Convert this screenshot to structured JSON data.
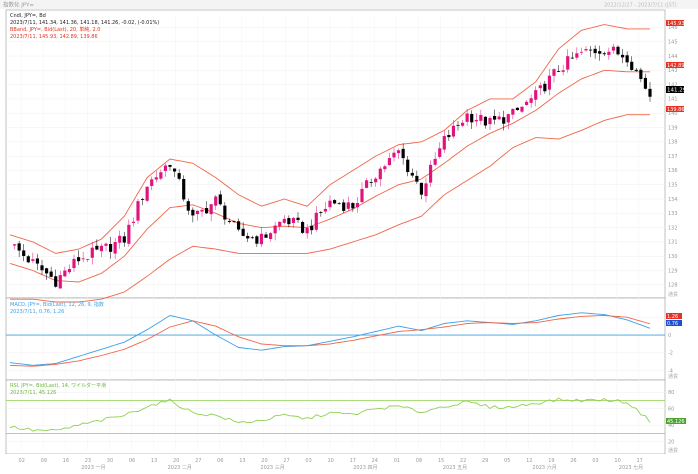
{
  "window": {
    "title": "指数化 JPY=",
    "top_right_text": "2022/12/27 - 2023/7/11 (JST)"
  },
  "main_panel": {
    "legend_line1": "Cndl, JPY=, Bd",
    "legend_line2": "2023/7/11, 141.34, 141.36, 141.18, 141.26, -0.02, (-0.01%)",
    "legend_line3": "BBand, JPY=, Bid(Last), 20, 単純, 2.0",
    "legend_line4": "2023/7/11, 145.93, 142.89, 139.86",
    "tags": {
      "upper_value": "145.93",
      "mid_value": "142.89",
      "last_price": "141.29",
      "lower_value": "139.86"
    },
    "yaxis_corner": "通貨"
  },
  "macd_panel": {
    "legend_line1": "MACD, JPY=, Bid(Last), 12, 26, 9, 指数",
    "legend_line2": "2023/7/11, 0.76, 1.26",
    "tags": {
      "signal_value": "1.26",
      "macd_value": "0.76"
    },
    "yaxis_corner": "通貨"
  },
  "rsi_panel": {
    "legend_line1": "RSI, JPY=, Bid(Last), 14, ワイルダー平滑",
    "legend_line2": "2023/7/11, 45.126",
    "tags": {
      "rsi_value": "45.126"
    },
    "yaxis_corner": "通貨"
  },
  "x_axis": {
    "day_ticks": [
      "02",
      "09",
      "16",
      "23",
      "30",
      "06",
      "13",
      "20",
      "27",
      "06",
      "13",
      "20",
      "27",
      "03",
      "10",
      "17",
      "24",
      "01",
      "08",
      "15",
      "22",
      "29",
      "05",
      "12",
      "19",
      "26",
      "03",
      "10",
      "17"
    ],
    "month_labels": [
      "2023 一月",
      "2023 二月",
      "2023 三月",
      "2023 四月",
      "2023 五月",
      "2023 六月",
      "2023 七月"
    ]
  },
  "colors": {
    "up_candle": "#e0147e",
    "down_candle": "#000000",
    "bband": "#f0654a",
    "macd_line": "#3aa0e8",
    "signal_line": "#f0654a",
    "rsi_line": "#8fd14f",
    "tag_red": "#e53222",
    "tag_blue": "#1d4fd1",
    "tag_green": "#4aa32c"
  },
  "chart_data": [
    {
      "type": "candlestick",
      "title": "Cndl, JPY=, Bd",
      "x_labels": [
        "2023 一月",
        "2023 二月",
        "2023 三月",
        "2023 四月",
        "2023 五月",
        "2023 六月",
        "2023 七月"
      ],
      "y_ticks": [
        128,
        129,
        130,
        131,
        132,
        133,
        134,
        135,
        136,
        137,
        138,
        139,
        140,
        141,
        142,
        143,
        144,
        145,
        146
      ],
      "ylim": [
        127.5,
        146.8
      ],
      "weekly_close": [
        130.9,
        129.5,
        128.3,
        129.8,
        130.4,
        131.2,
        135.0,
        136.6,
        132.6,
        133.9,
        131.5,
        131.2,
        132.6,
        131.8,
        133.8,
        133.5,
        135.8,
        137.3,
        134.6,
        138.1,
        139.9,
        139.3,
        139.9,
        141.2,
        143.1,
        144.2,
        144.5,
        144.0,
        141.3
      ],
      "series": [
        {
          "name": "BBand Upper",
          "values": [
            131.5,
            131.0,
            130.2,
            130.5,
            131.2,
            132.8,
            135.5,
            136.8,
            136.5,
            135.5,
            134.3,
            133.5,
            134.0,
            133.5,
            135.0,
            136.0,
            137.0,
            137.8,
            138.0,
            138.8,
            140.2,
            141.0,
            141.0,
            142.2,
            144.5,
            145.8,
            146.2,
            145.9,
            145.9
          ]
        },
        {
          "name": "BBand Mid",
          "values": [
            129.5,
            129.0,
            128.3,
            128.2,
            128.8,
            130.0,
            131.9,
            133.4,
            133.6,
            133.0,
            132.3,
            132.0,
            132.1,
            132.0,
            132.6,
            133.3,
            134.2,
            135.0,
            135.4,
            136.5,
            137.7,
            138.6,
            139.3,
            140.2,
            141.4,
            142.4,
            143.0,
            142.9,
            142.9
          ]
        },
        {
          "name": "BBand Lower",
          "values": [
            127.0,
            127.0,
            126.8,
            126.8,
            127.0,
            127.5,
            128.6,
            129.8,
            130.7,
            130.5,
            130.2,
            130.2,
            130.2,
            130.2,
            130.5,
            131.0,
            131.5,
            132.2,
            132.8,
            134.3,
            135.3,
            136.3,
            137.6,
            138.3,
            138.2,
            138.8,
            139.5,
            139.9,
            139.9
          ]
        }
      ]
    },
    {
      "type": "line",
      "title": "MACD, JPY=, Bid(Last), 12, 26, 9, 指数",
      "y_ticks": [
        2,
        0,
        -2,
        -4
      ],
      "ylim": [
        -4.6,
        3.6
      ],
      "series": [
        {
          "name": "MACD",
          "values": [
            -3.1,
            -3.4,
            -3.2,
            -2.4,
            -1.6,
            -0.8,
            0.6,
            2.2,
            1.6,
            0.0,
            -1.4,
            -1.7,
            -1.3,
            -1.2,
            -0.7,
            -0.2,
            0.4,
            1.0,
            0.5,
            1.3,
            1.6,
            1.4,
            1.2,
            1.6,
            2.2,
            2.5,
            2.3,
            1.7,
            0.76
          ]
        },
        {
          "name": "Signal",
          "values": [
            -3.4,
            -3.5,
            -3.3,
            -2.9,
            -2.3,
            -1.6,
            -0.5,
            0.9,
            1.6,
            1.0,
            -0.2,
            -1.0,
            -1.2,
            -1.2,
            -1.0,
            -0.6,
            -0.1,
            0.4,
            0.6,
            0.9,
            1.3,
            1.4,
            1.3,
            1.4,
            1.8,
            2.1,
            2.2,
            2.0,
            1.26
          ]
        }
      ]
    },
    {
      "type": "line",
      "title": "RSI, JPY=, Bid(Last), 14, ワイルダー平滑",
      "y_ticks": [
        80,
        60,
        40,
        20
      ],
      "ylim": [
        10,
        90
      ],
      "reference_lines": [
        70,
        30
      ],
      "series": [
        {
          "name": "RSI",
          "values": [
            38,
            34,
            33,
            40,
            46,
            52,
            63,
            70,
            55,
            52,
            43,
            46,
            52,
            48,
            55,
            53,
            60,
            63,
            56,
            63,
            68,
            62,
            62,
            67,
            71,
            70,
            71,
            68,
            45.126
          ]
        }
      ]
    }
  ]
}
